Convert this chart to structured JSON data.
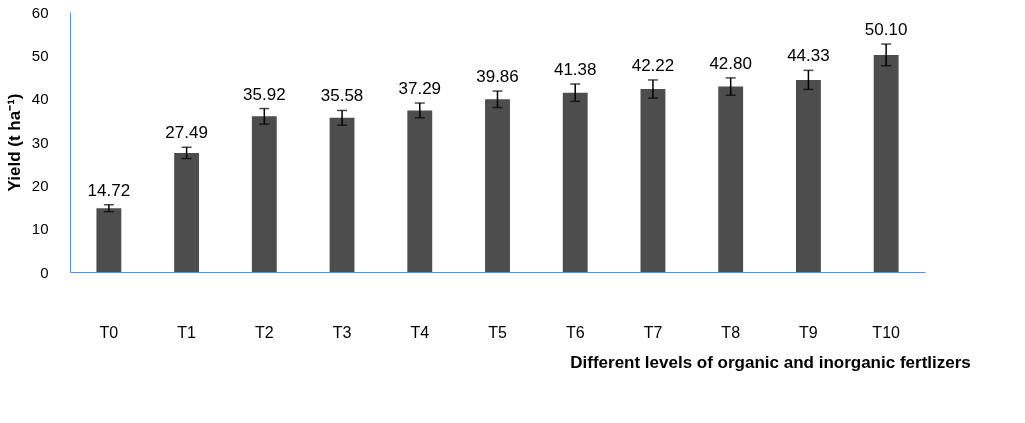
{
  "chart_data": {
    "type": "bar",
    "xlabel": "Different levels of organic and inorganic fertlizers",
    "ylabel": "Yield (t ha⁻¹)",
    "categories": [
      "T0",
      "T1",
      "T2",
      "T3",
      "T4",
      "T5",
      "T6",
      "T7",
      "T8",
      "T9",
      "T10"
    ],
    "values": [
      14.72,
      27.49,
      35.92,
      35.58,
      37.29,
      39.86,
      41.38,
      42.22,
      42.8,
      44.33,
      50.1
    ],
    "errors": [
      0.8,
      1.3,
      1.8,
      1.7,
      1.7,
      1.9,
      2.0,
      2.1,
      2.0,
      2.2,
      2.5
    ],
    "value_labels": [
      "14.72",
      "27.49",
      "35.92",
      "35.58",
      "37.29",
      "39.86",
      "41.38",
      "42.22",
      "42.80",
      "44.33",
      "50.10"
    ],
    "color": "#4d4d4d",
    "ylim": [
      0,
      60
    ],
    "yticks": [
      0,
      10,
      20,
      30,
      40,
      50,
      60
    ],
    "grid": false
  }
}
